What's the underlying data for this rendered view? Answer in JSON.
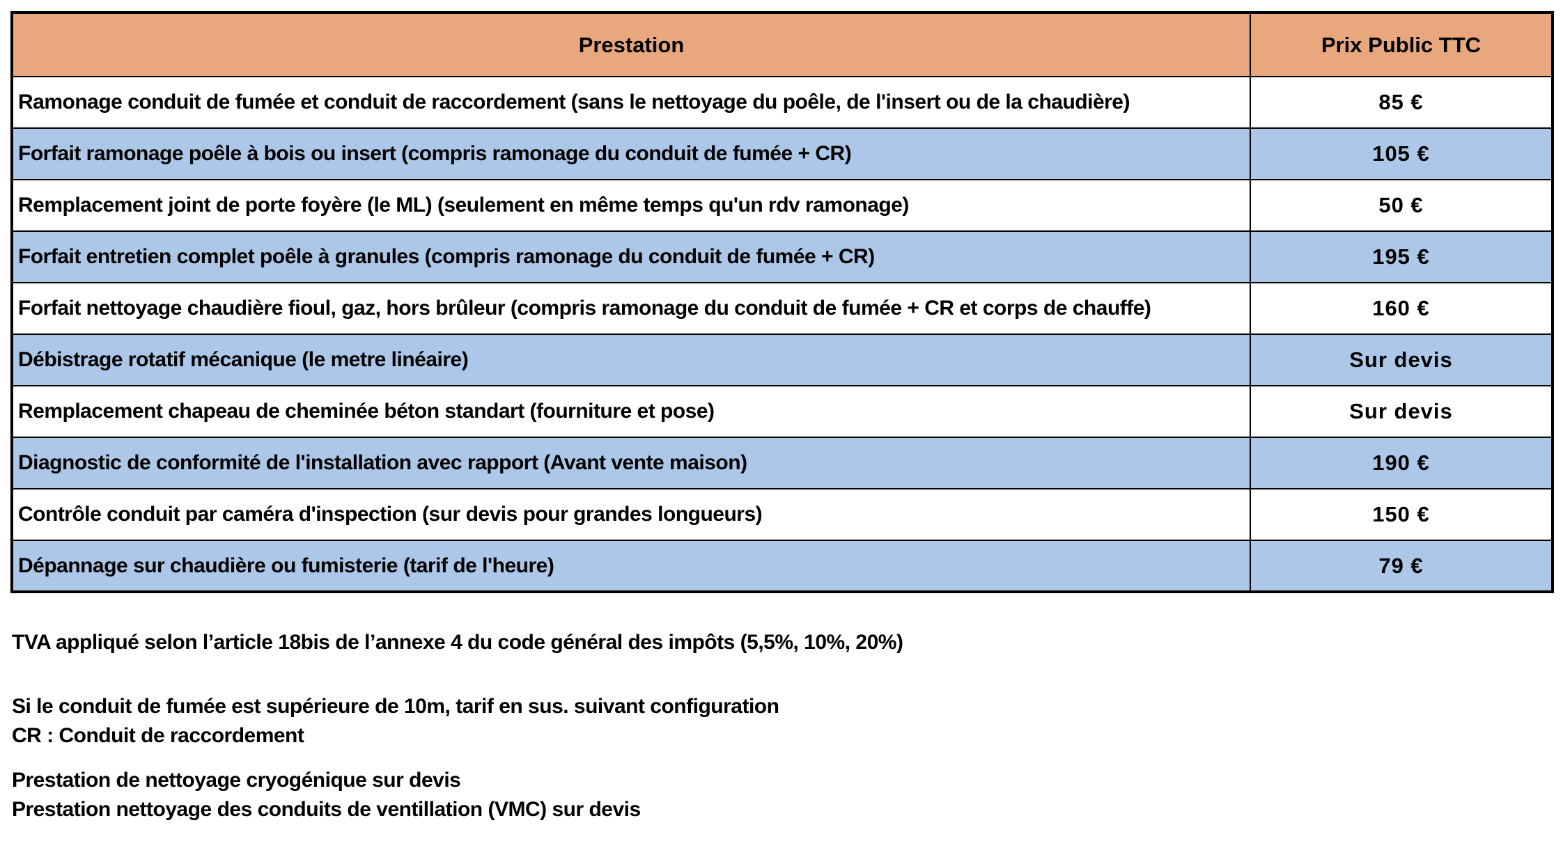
{
  "colors": {
    "header_bg": "#E8A77D",
    "row_alt_bg": "#ADC7E8",
    "row_bg": "#FFFFFF",
    "border": "#000000",
    "text": "#000000"
  },
  "table": {
    "headers": {
      "prestation": "Prestation",
      "prix": "Prix Public TTC"
    },
    "rows": [
      {
        "prestation": "Ramonage conduit de fumée et conduit de raccordement (sans le nettoyage du poêle, de l'insert ou de la chaudière)",
        "prix": "85 €"
      },
      {
        "prestation": "Forfait ramonage poêle à bois ou insert (compris ramonage du conduit de fumée + CR)",
        "prix": "105 €"
      },
      {
        "prestation": "Remplacement joint de porte foyère (le ML) (seulement en même temps qu'un rdv ramonage)",
        "prix": "50 €"
      },
      {
        "prestation": "Forfait entretien complet poêle à granules (compris ramonage du conduit de fumée + CR)",
        "prix": "195 €"
      },
      {
        "prestation": "Forfait nettoyage chaudière fioul, gaz, hors brûleur (compris ramonage du conduit de fumée + CR et corps de chauffe)",
        "prix": "160 €"
      },
      {
        "prestation": "Débistrage rotatif mécanique (le metre linéaire)",
        "prix": "Sur devis"
      },
      {
        "prestation": "Remplacement chapeau de cheminée béton standart (fourniture et pose)",
        "prix": "Sur devis"
      },
      {
        "prestation": "Diagnostic de conformité de l'installation avec rapport (Avant vente maison)",
        "prix": "190 €"
      },
      {
        "prestation": "Contrôle conduit par caméra d'inspection (sur devis pour grandes longueurs)",
        "prix": "150 €"
      },
      {
        "prestation": "Dépannage sur chaudière ou fumisterie (tarif de l'heure)",
        "prix": "79 €"
      }
    ]
  },
  "notes": {
    "tva": "TVA appliqué selon l’article 18bis de l’annexe 4 du code général des impôts (5,5%, 10%, 20%)",
    "conduit": "Si le conduit de fumée est supérieure de 10m, tarif en sus. suivant configuration",
    "cr": "CR : Conduit de raccordement",
    "cryogenique": "Prestation de nettoyage cryogénique sur devis",
    "vmc": "Prestation nettoyage des conduits de ventillation (VMC) sur devis"
  }
}
